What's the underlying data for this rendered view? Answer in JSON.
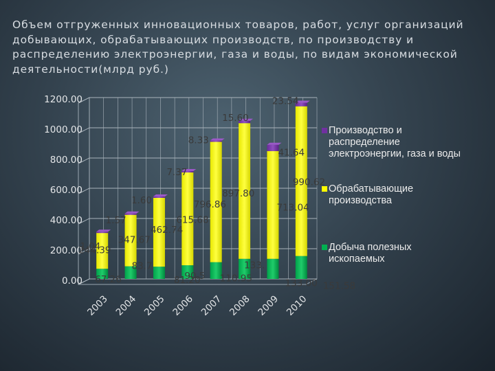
{
  "colors": {
    "production": "#7030a0",
    "manufacturing": "#ffff00",
    "mining": "#00b050",
    "background": "#3a4a57"
  },
  "chart_data": {
    "type": "bar",
    "stacked": true,
    "title": "Объем отгруженных инновационных товаров, работ, услуг организаций добывающих, обрабатывающих производств, по производству и распределению электроэнергии, газа и воды, по видам экономической деятельности(млрд руб.)",
    "categories": [
      "2003",
      "2004",
      "2005",
      "2006",
      "2007",
      "2008",
      "2009",
      "2010"
    ],
    "ylim": [
      0,
      1200
    ],
    "yticks": [
      "0.00",
      "200.00",
      "400.00",
      "600.00",
      "800.00",
      "1000.00",
      "1200.00"
    ],
    "grid": true,
    "legend_position": "right",
    "series": [
      {
        "name": "Добыча полезных ископаемых",
        "color": "#00b050",
        "values": [
          67.26,
          83.7,
          81.2,
          90.5,
          110.95,
          133,
          133.0,
          151.58
        ],
        "labels": [
          "67.26",
          "83.7",
          "81.20",
          "90.5",
          "110.95",
          "133.",
          "133.00",
          "151.58"
        ]
      },
      {
        "name": "Обрабатывающие производства",
        "color": "#ffff00",
        "values": [
          244.39,
          347.67,
          462.74,
          615.68,
          796.86,
          897.8,
          713.04,
          990.62
        ],
        "labels": [
          "244.39",
          "347.67",
          "462.74",
          "615.68",
          "796.86",
          "897.80",
          "713.04",
          "990.62"
        ]
      },
      {
        "name": "Производство и распределение электроэнергии, газа и воды",
        "color": "#7030a0",
        "values": [
          1.04,
          1.57,
          1.6,
          7.37,
          8.33,
          15.6,
          41.64,
          23.54
        ],
        "labels": [
          "1.04",
          "1.57",
          "1.60",
          "7.37",
          "8.33",
          "15.60",
          "41.64",
          "23.54"
        ]
      }
    ],
    "legend": [
      "Производство и распределение электроэнергии, газа и воды",
      "Обрабатывающие производства",
      "Добыча полезных ископаемых"
    ]
  }
}
